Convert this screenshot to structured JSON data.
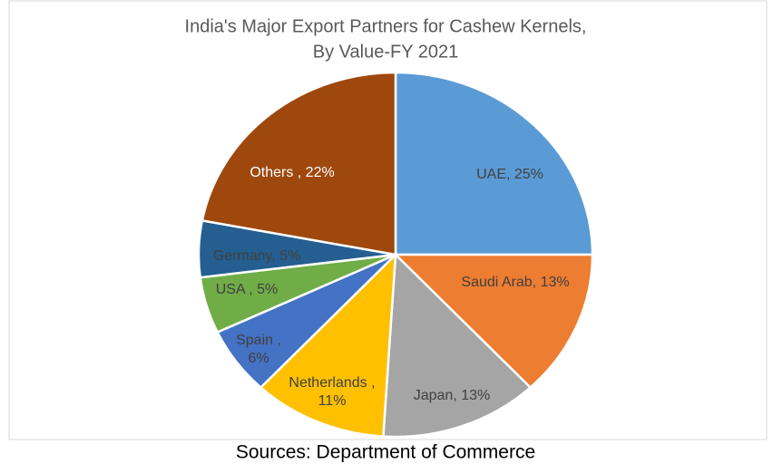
{
  "chart_data": {
    "type": "pie",
    "title": "India's Major Export Partners for Cashew Kernels,",
    "subtitle": "By Value-FY 2021",
    "values": [
      25,
      13,
      13,
      11,
      6,
      5,
      5,
      22
    ],
    "value_labels": [
      "UAE, 25%",
      "Saudi Arab, 13%",
      "Japan, 13%",
      "Netherlands ,\n11%",
      "Spain ,\n6%",
      "USA , 5%",
      "Germany, 5%",
      "Others , 22%"
    ],
    "colors": [
      "#5b9bd5",
      "#ed7d31",
      "#a5a5a5",
      "#ffc000",
      "#4472c4",
      "#70ad47",
      "#255e91",
      "#9e480e"
    ],
    "source": "Sources: Department of Commerce"
  }
}
